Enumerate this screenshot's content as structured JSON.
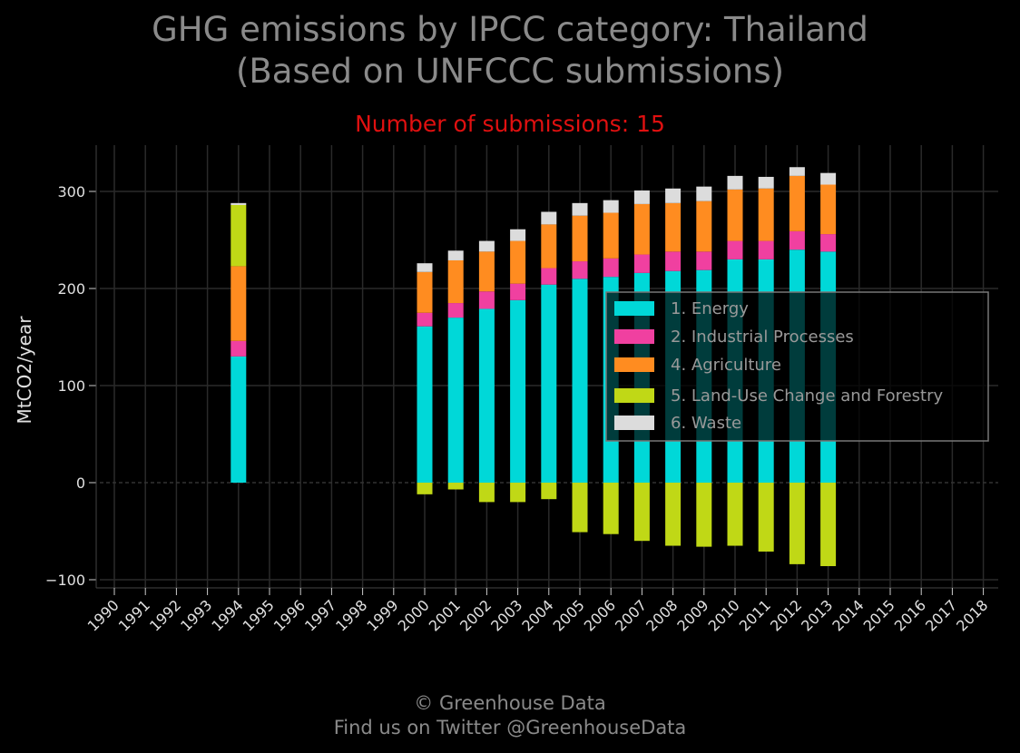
{
  "title_line1": "GHG emissions by IPCC category: Thailand",
  "title_line2": "(Based on UNFCCC submissions)",
  "subtitle": "Number of submissions: 15",
  "footer_line1": "© Greenhouse Data",
  "footer_line2": "Find us on Twitter @GreenhouseData",
  "chart_data": {
    "type": "bar",
    "stacked": true,
    "title": "GHG emissions by IPCC category: Thailand (Based on UNFCCC submissions)",
    "subtitle": "Number of submissions: 15",
    "ylabel": "MtCO2/year",
    "xlabel": "",
    "ylim": [
      -100,
      340
    ],
    "yticks": [
      -100,
      0,
      100,
      200,
      300
    ],
    "ytick_labels": [
      "−100",
      "0",
      "100",
      "200",
      "300"
    ],
    "grid": true,
    "legend_position": "right",
    "categories": [
      "1990",
      "1991",
      "1992",
      "1993",
      "1994",
      "1995",
      "1996",
      "1997",
      "1998",
      "1999",
      "2000",
      "2001",
      "2002",
      "2003",
      "2004",
      "2005",
      "2006",
      "2007",
      "2008",
      "2009",
      "2010",
      "2011",
      "2012",
      "2013",
      "2014",
      "2015",
      "2016",
      "2017",
      "2018"
    ],
    "series": [
      {
        "name": "1. Energy",
        "color": "#00d8d8",
        "values": [
          null,
          null,
          null,
          null,
          130,
          null,
          null,
          null,
          null,
          null,
          161,
          170,
          179,
          188,
          204,
          210,
          212,
          216,
          218,
          219,
          230,
          230,
          240,
          238,
          null,
          null,
          null,
          null,
          null
        ]
      },
      {
        "name": "2. Industrial Processes",
        "color": "#f040a0",
        "values": [
          null,
          null,
          null,
          null,
          16,
          null,
          null,
          null,
          null,
          null,
          14,
          15,
          18,
          17,
          17,
          18,
          19,
          19,
          20,
          19,
          19,
          19,
          19,
          18,
          null,
          null,
          null,
          null,
          null
        ]
      },
      {
        "name": "4. Agriculture",
        "color": "#ff8c20",
        "values": [
          null,
          null,
          null,
          null,
          77,
          null,
          null,
          null,
          null,
          null,
          42,
          44,
          41,
          44,
          45,
          47,
          47,
          52,
          50,
          52,
          53,
          54,
          57,
          51,
          null,
          null,
          null,
          null,
          null
        ]
      },
      {
        "name": "5. Land-Use Change and Forestry",
        "color": "#c0d816",
        "values": [
          null,
          null,
          null,
          null,
          63,
          null,
          null,
          null,
          null,
          null,
          -12,
          -7,
          -20,
          -20,
          -17,
          -51,
          -53,
          -60,
          -65,
          -66,
          -65,
          -71,
          -84,
          -86,
          null,
          null,
          null,
          null,
          null
        ]
      },
      {
        "name": "6. Waste",
        "color": "#dcdcdc",
        "values": [
          null,
          null,
          null,
          null,
          2,
          null,
          null,
          null,
          null,
          null,
          9,
          10,
          11,
          12,
          13,
          13,
          13,
          14,
          15,
          15,
          14,
          12,
          9,
          12,
          null,
          null,
          null,
          null,
          null
        ]
      }
    ]
  }
}
